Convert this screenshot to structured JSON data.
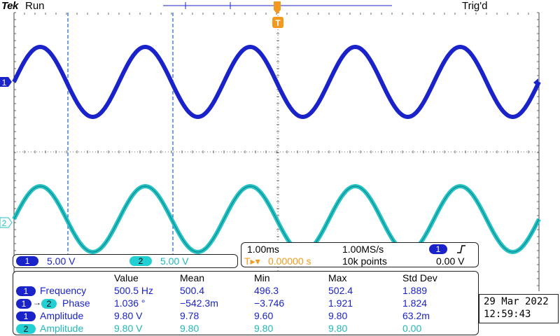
{
  "header": {
    "brand": "Tek",
    "run_state": "Run",
    "trigger_status": "Trig'd"
  },
  "markers": {
    "ch1": "1",
    "ch2": "2",
    "trigger_position": "T"
  },
  "channels": {
    "ch1": {
      "label": "1",
      "scale": "5.00 V",
      "color": "#1a23c9"
    },
    "ch2": {
      "label": "2",
      "scale": "5.00 V",
      "color": "#22cfd2"
    }
  },
  "timebase": {
    "horizontal_scale": "1.00ms",
    "sample_rate": "1.00MS/s",
    "trigger_channel": "1",
    "trigger_slope_icon": "rising-edge-icon",
    "trigger_delay_prefix": "T▸▾",
    "trigger_delay": "0.00000 s",
    "record_length": "10k points",
    "trigger_level": "0.00 V"
  },
  "measurements": {
    "headers": [
      "Value",
      "Mean",
      "Min",
      "Max",
      "Std Dev"
    ],
    "rows": [
      {
        "channel": "1",
        "channel2": "",
        "name": "Frequency",
        "value": "500.5 Hz",
        "mean": "500.4",
        "min": "496.3",
        "max": "502.4",
        "std": "1.889"
      },
      {
        "channel": "1",
        "channel2": "2",
        "name": "Phase",
        "value": "1.036 °",
        "mean": "−542.3m",
        "min": "−3.746",
        "max": "1.921",
        "std": "1.824"
      },
      {
        "channel": "1",
        "channel2": "",
        "name": "Amplitude",
        "value": "9.80 V",
        "mean": "9.78",
        "min": "9.60",
        "max": "9.80",
        "std": "63.2m"
      },
      {
        "channel": "2",
        "channel2": "",
        "name": "Amplitude",
        "value": "9.80 V",
        "mean": "9.80",
        "min": "9.80",
        "max": "9.80",
        "std": "0.00"
      }
    ]
  },
  "datetime": {
    "date": "29 Mar  2022",
    "time": "12:59:43"
  }
}
